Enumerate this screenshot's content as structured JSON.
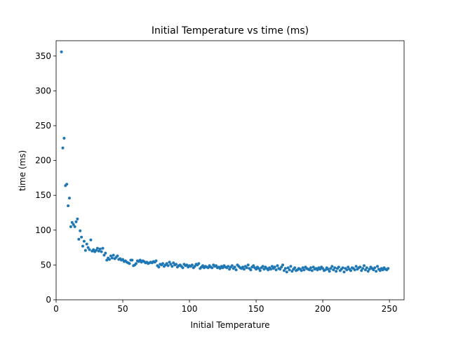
{
  "chart_data": {
    "type": "scatter",
    "title": "Initial Temperature vs time (ms)",
    "x_label": "Initial Temperature",
    "y_label": "time (ms)",
    "color": "#1f77b4",
    "xlim": [
      0,
      261
    ],
    "ylim": [
      0,
      372
    ],
    "xticks": [
      0,
      50,
      100,
      150,
      200,
      250
    ],
    "yticks": [
      0,
      50,
      100,
      150,
      200,
      250,
      300,
      350
    ],
    "series": [
      {
        "x": [
          4,
          5,
          6,
          7,
          8,
          9,
          10,
          11,
          12,
          13,
          14,
          15,
          16,
          17,
          18,
          19,
          20,
          21,
          22,
          23,
          24,
          25,
          26,
          27,
          28,
          29,
          30,
          31,
          32,
          33,
          34,
          35,
          36,
          37,
          38,
          39,
          40,
          41,
          42,
          43,
          44,
          45,
          46,
          47,
          48,
          49,
          50,
          51,
          52,
          53,
          54,
          55,
          56,
          57,
          58,
          59,
          60,
          61,
          62,
          63,
          64,
          65,
          66,
          67,
          68,
          69,
          70,
          71,
          72,
          73,
          74,
          75,
          76,
          77,
          78,
          79,
          80,
          81,
          82,
          83,
          84,
          85,
          86,
          87,
          88,
          89,
          90,
          91,
          92,
          93,
          94,
          95,
          96,
          97,
          98,
          99,
          100,
          101,
          102,
          103,
          104,
          105,
          106,
          107,
          108,
          109,
          110,
          111,
          112,
          113,
          114,
          115,
          116,
          117,
          118,
          119,
          120,
          121,
          122,
          123,
          124,
          125,
          126,
          127,
          128,
          129,
          130,
          131,
          132,
          133,
          134,
          135,
          136,
          137,
          138,
          139,
          140,
          141,
          142,
          143,
          144,
          145,
          146,
          147,
          148,
          149,
          150,
          151,
          152,
          153,
          154,
          155,
          156,
          157,
          158,
          159,
          160,
          161,
          162,
          163,
          164,
          165,
          166,
          167,
          168,
          169,
          170,
          171,
          172,
          173,
          174,
          175,
          176,
          177,
          178,
          179,
          180,
          181,
          182,
          183,
          184,
          185,
          186,
          187,
          188,
          189,
          190,
          191,
          192,
          193,
          194,
          195,
          196,
          197,
          198,
          199,
          200,
          201,
          202,
          203,
          204,
          205,
          206,
          207,
          208,
          209,
          210,
          211,
          212,
          213,
          214,
          215,
          216,
          217,
          218,
          219,
          220,
          221,
          222,
          223,
          224,
          225,
          226,
          227,
          228,
          229,
          230,
          231,
          232,
          233,
          234,
          235,
          236,
          237,
          238,
          239,
          240,
          241,
          242,
          243,
          244,
          245,
          246,
          247,
          248,
          249
        ],
        "values": [
          356,
          218,
          232,
          164,
          166,
          135,
          146,
          105,
          111,
          108,
          105,
          112,
          116,
          87,
          99,
          90,
          77,
          84,
          71,
          80,
          75,
          72,
          86,
          70,
          72,
          69,
          71,
          74,
          70,
          73,
          69,
          74,
          64,
          67,
          57,
          60,
          58,
          63,
          60,
          64,
          59,
          61,
          63,
          58,
          59,
          57,
          58,
          55,
          56,
          54,
          53,
          52,
          57,
          57,
          49,
          50,
          52,
          56,
          55,
          57,
          54,
          56,
          55,
          53,
          54,
          52,
          53,
          54,
          53,
          55,
          54,
          56,
          49,
          47,
          51,
          50,
          52,
          48,
          50,
          52,
          49,
          54,
          51,
          48,
          53,
          50,
          51,
          47,
          49,
          50,
          48,
          46,
          51,
          49,
          50,
          47,
          49,
          48,
          50,
          46,
          48,
          51,
          50,
          52,
          45,
          47,
          49,
          46,
          48,
          47,
          46,
          49,
          47,
          46,
          50,
          48,
          49,
          46,
          47,
          45,
          48,
          46,
          49,
          47,
          46,
          48,
          44,
          47,
          49,
          45,
          47,
          43,
          50,
          48,
          46,
          45,
          47,
          44,
          48,
          46,
          50,
          45,
          43,
          47,
          49,
          46,
          44,
          47,
          45,
          42,
          46,
          48,
          44,
          47,
          45,
          43,
          46,
          44,
          48,
          45,
          47,
          43,
          49,
          45,
          44,
          47,
          50,
          42,
          45,
          40,
          46,
          43,
          48,
          41,
          44,
          46,
          42,
          43,
          45,
          44,
          42,
          46,
          43,
          47,
          45,
          44,
          43,
          46,
          42,
          47,
          44,
          45,
          43,
          46,
          44,
          47,
          45,
          42,
          43,
          46,
          44,
          41,
          45,
          48,
          43,
          46,
          41,
          45,
          47,
          42,
          44,
          46,
          40,
          45,
          43,
          47,
          44,
          42,
          46,
          45,
          43,
          48,
          44,
          46,
          47,
          42,
          45,
          49,
          43,
          46,
          41,
          44,
          47,
          45,
          43,
          46,
          41,
          48,
          44,
          42,
          45,
          43,
          46,
          44,
          43,
          45
        ]
      }
    ]
  }
}
